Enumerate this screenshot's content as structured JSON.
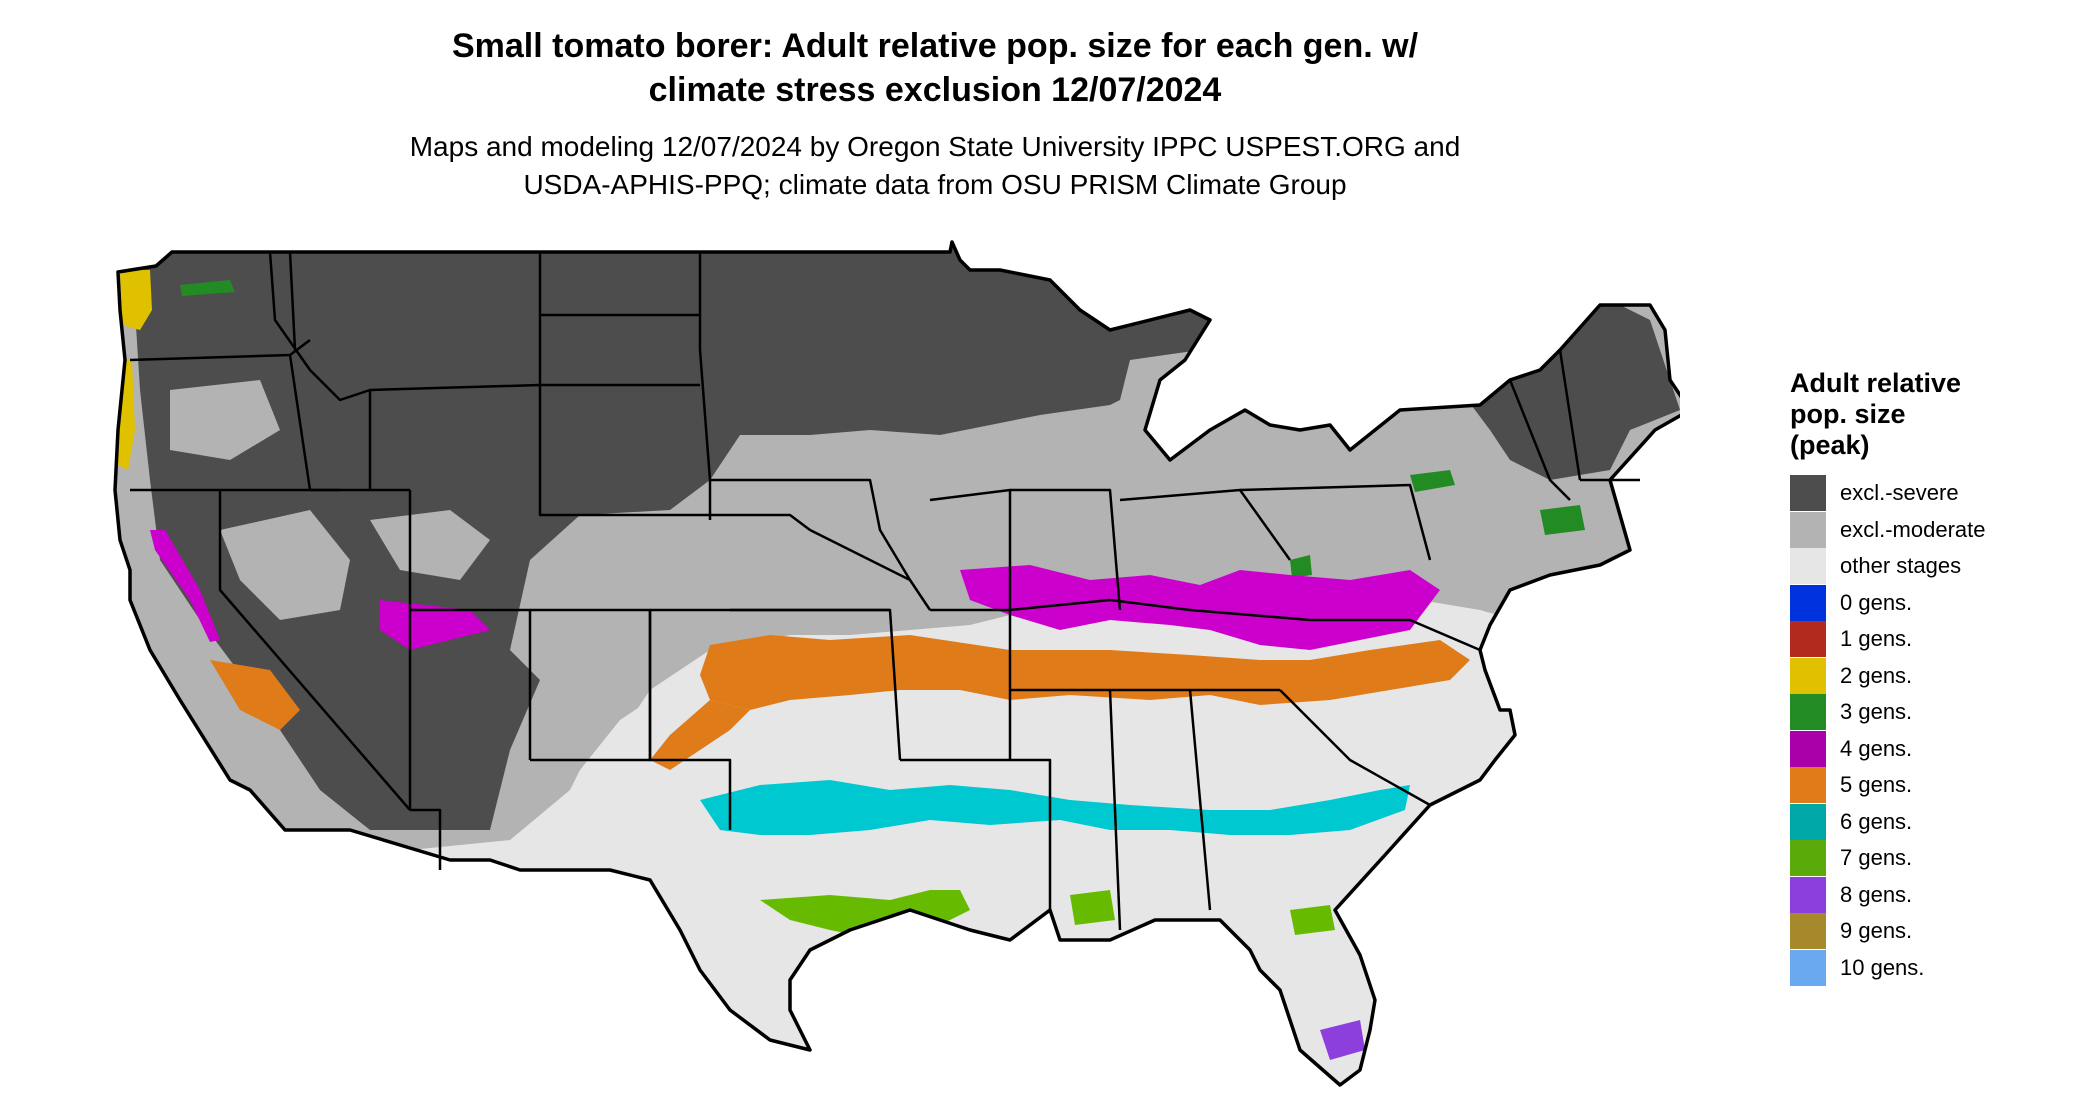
{
  "title": {
    "line1": "Small tomato borer: Adult relative pop. size for each gen. w/",
    "line2": "climate stress exclusion 12/07/2024"
  },
  "subtitle": {
    "line1": "Maps and modeling 12/07/2024 by Oregon State University IPPC USPEST.ORG and",
    "line2": "USDA-APHIS-PPQ; climate data from OSU PRISM Climate Group"
  },
  "legend": {
    "title_lines": [
      "Adult relative",
      "pop. size",
      "(peak)"
    ],
    "items": [
      {
        "label": "excl.-severe",
        "color": "#4d4d4d"
      },
      {
        "label": "excl.-moderate",
        "color": "#b3b3b3"
      },
      {
        "label": "other stages",
        "color": "#e6e6e6"
      },
      {
        "label": "0 gens.",
        "color": "#0033dd"
      },
      {
        "label": "1 gens.",
        "color": "#b22a1e"
      },
      {
        "label": "2 gens.",
        "color": "#e0c100"
      },
      {
        "label": "3 gens.",
        "color": "#238b23"
      },
      {
        "label": "4 gens.",
        "color": "#aa00aa"
      },
      {
        "label": "5 gens.",
        "color": "#e07b1a"
      },
      {
        "label": "6 gens.",
        "color": "#00a8a8"
      },
      {
        "label": "7 gens.",
        "color": "#5aaa0a"
      },
      {
        "label": "8 gens.",
        "color": "#8c3fdc"
      },
      {
        "label": "9 gens.",
        "color": "#a6892a"
      },
      {
        "label": "10 gens.",
        "color": "#6aa8f0"
      }
    ]
  },
  "map": {
    "colors": {
      "severe": "#4d4d4d",
      "moderate": "#b3b3b3",
      "other": "#e6e6e6",
      "gen2": "#e0c100",
      "gen3": "#238b23",
      "gen4": "#cc00cc",
      "gen5": "#e07b1a",
      "gen6": "#00c8d0",
      "gen7": "#66bb00",
      "gen8": "#8c3fdc",
      "gen9": "#a6892a"
    }
  }
}
